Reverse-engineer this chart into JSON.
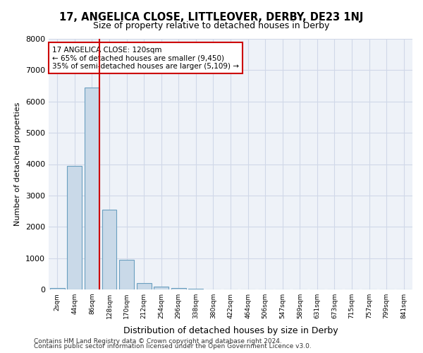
{
  "title_line1": "17, ANGELICA CLOSE, LITTLEOVER, DERBY, DE23 1NJ",
  "title_line2": "Size of property relative to detached houses in Derby",
  "xlabel": "Distribution of detached houses by size in Derby",
  "ylabel": "Number of detached properties",
  "footer_line1": "Contains HM Land Registry data © Crown copyright and database right 2024.",
  "footer_line2": "Contains public sector information licensed under the Open Government Licence v3.0.",
  "annotation_line1": "17 ANGELICA CLOSE: 120sqm",
  "annotation_line2": "← 65% of detached houses are smaller (9,450)",
  "annotation_line3": "35% of semi-detached houses are larger (5,109) →",
  "bar_values": [
    50,
    3950,
    6450,
    2550,
    950,
    200,
    100,
    55,
    30,
    0,
    0,
    0,
    0,
    0,
    0,
    0,
    0,
    0,
    0,
    0,
    0
  ],
  "bar_labels": [
    "2sqm",
    "44sqm",
    "86sqm",
    "128sqm",
    "170sqm",
    "212sqm",
    "254sqm",
    "296sqm",
    "338sqm",
    "380sqm",
    "422sqm",
    "464sqm",
    "506sqm",
    "547sqm",
    "589sqm",
    "631sqm",
    "673sqm",
    "715sqm",
    "757sqm",
    "799sqm",
    "841sqm"
  ],
  "bar_color": "#c9d9e8",
  "bar_edge_color": "#6a9fc0",
  "vline_color": "#cc0000",
  "annotation_box_edge_color": "#cc0000",
  "ylim": [
    0,
    8000
  ],
  "yticks": [
    0,
    1000,
    2000,
    3000,
    4000,
    5000,
    6000,
    7000,
    8000
  ],
  "grid_color": "#d0d8e8",
  "background_color": "#eef2f8",
  "figure_bg": "#ffffff"
}
